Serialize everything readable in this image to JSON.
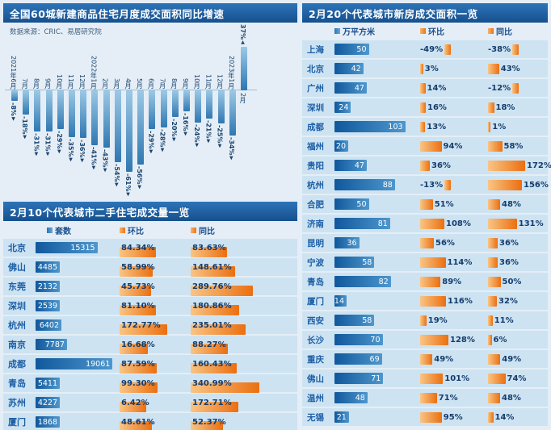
{
  "accent_colors": {
    "header_blue": "#16508e",
    "bar_blue": "#2f77b1",
    "bar_orange": "#eb6f10",
    "row_bg": "#cde3f2"
  },
  "chart_data": [
    {
      "type": "bar",
      "title": "全国60城新建商品住宅月度成交面积同比增速",
      "source": "数据来源：CRIC、易居研究院",
      "categories": [
        "2021年6月",
        "7月",
        "8月",
        "9月",
        "10月",
        "11月",
        "12月",
        "2022年1月",
        "2月",
        "3月",
        "4月",
        "5月",
        "6月",
        "7月",
        "8月",
        "9月",
        "10月",
        "11月",
        "12月",
        "2023年1月",
        "2月"
      ],
      "values": [
        -8,
        -18,
        -31,
        -31,
        -29,
        -35,
        -36,
        -41,
        -43,
        -54,
        -61,
        -56,
        -29,
        -28,
        -20,
        -16,
        -24,
        -21,
        -25,
        -34,
        37
      ],
      "unit": "%",
      "ylim": [
        -70,
        40
      ],
      "grid": false,
      "legend": "none"
    },
    {
      "type": "table",
      "title": "2月10个代表城市二手住宅成交量一览",
      "columns": [
        "套数",
        "环比",
        "同比"
      ],
      "rows": [
        [
          "北京",
          "15315",
          "84.34%",
          "83.63%"
        ],
        [
          "佛山",
          "4485",
          "58.99%",
          "148.61%"
        ],
        [
          "东莞",
          "2132",
          "45.73%",
          "289.76%"
        ],
        [
          "深圳",
          "2539",
          "81.10%",
          "180.86%"
        ],
        [
          "杭州",
          "6402",
          "172.77%",
          "235.01%"
        ],
        [
          "南京",
          "7787",
          "16.68%",
          "88.27%"
        ],
        [
          "成都",
          "19061",
          "87.59%",
          "160.43%"
        ],
        [
          "青岛",
          "5411",
          "99.30%",
          "340.99%"
        ],
        [
          "苏州",
          "4227",
          "6.42%",
          "172.71%"
        ],
        [
          "厦门",
          "1868",
          "48.61%",
          "52.37%"
        ]
      ]
    },
    {
      "type": "table",
      "title": "2月20个代表城市新房成交面积一览",
      "columns": [
        "万平方米",
        "环比",
        "同比"
      ],
      "rows": [
        [
          "上海",
          "50",
          "-49%",
          "-38%"
        ],
        [
          "北京",
          "42",
          "3%",
          "43%"
        ],
        [
          "广州",
          "47",
          "14%",
          "-12%"
        ],
        [
          "深圳",
          "24",
          "16%",
          "18%"
        ],
        [
          "成都",
          "103",
          "13%",
          "1%"
        ],
        [
          "福州",
          "20",
          "94%",
          "58%"
        ],
        [
          "贵阳",
          "47",
          "36%",
          "172%"
        ],
        [
          "杭州",
          "88",
          "-13%",
          "156%"
        ],
        [
          "合肥",
          "50",
          "51%",
          "48%"
        ],
        [
          "济南",
          "81",
          "108%",
          "131%"
        ],
        [
          "昆明",
          "36",
          "56%",
          "36%"
        ],
        [
          "宁波",
          "58",
          "114%",
          "36%"
        ],
        [
          "青岛",
          "82",
          "89%",
          "50%"
        ],
        [
          "厦门",
          "14",
          "116%",
          "32%"
        ],
        [
          "西安",
          "58",
          "19%",
          "11%"
        ],
        [
          "长沙",
          "70",
          "128%",
          "6%"
        ],
        [
          "重庆",
          "69",
          "49%",
          "49%"
        ],
        [
          "佛山",
          "71",
          "101%",
          "74%"
        ],
        [
          "温州",
          "48",
          "71%",
          "48%"
        ],
        [
          "无锡",
          "21",
          "95%",
          "14%"
        ]
      ]
    }
  ]
}
